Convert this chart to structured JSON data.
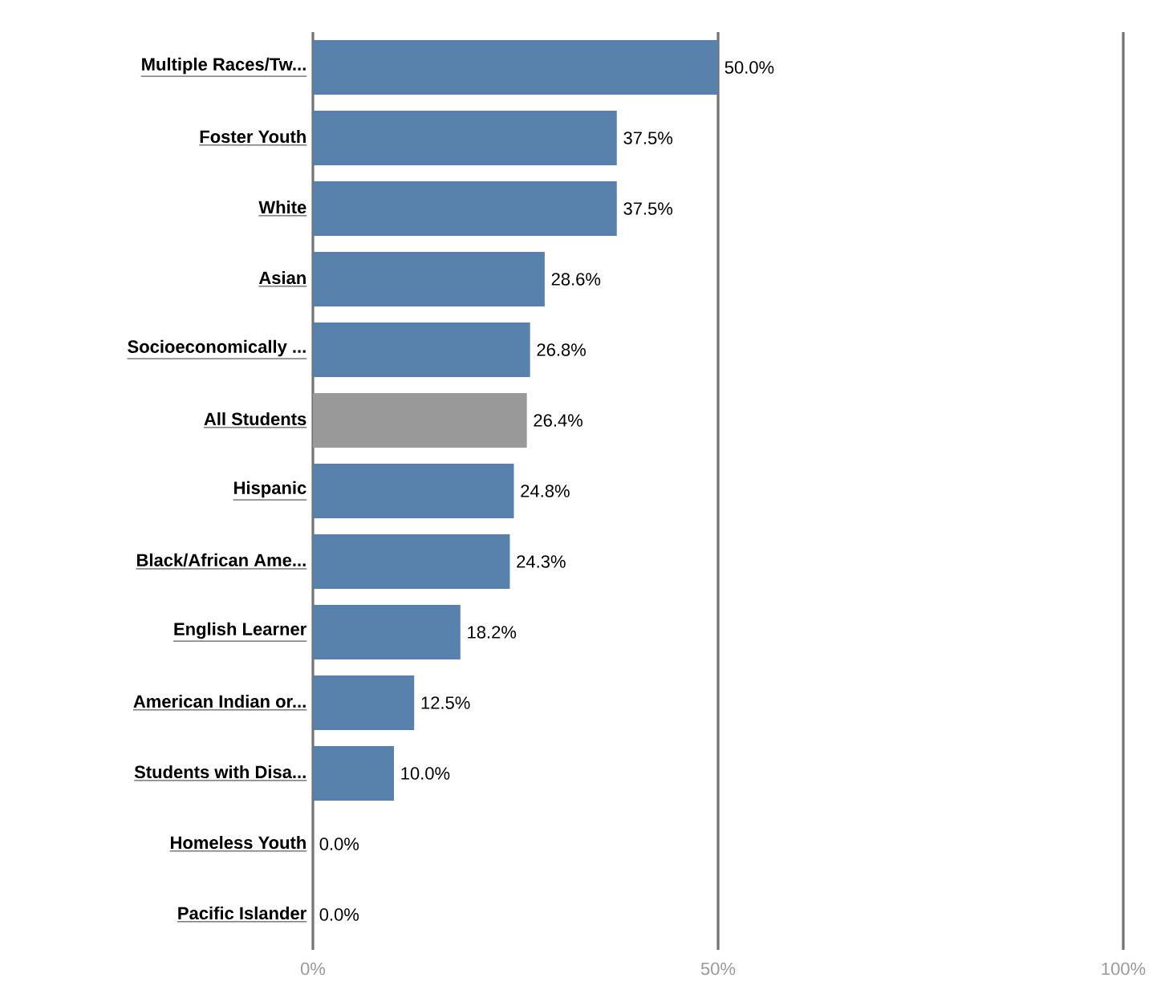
{
  "chart_data": {
    "type": "bar",
    "orientation": "horizontal",
    "categories": [
      "Multiple Races/Tw...",
      "Foster Youth",
      "White",
      "Asian",
      "Socioeconomically ...",
      "All Students",
      "Hispanic",
      "Black/African Ame...",
      "English Learner",
      "American Indian or...",
      "Students with Disa...",
      "Homeless Youth",
      "Pacific Islander"
    ],
    "values": [
      50,
      37.5,
      37.5,
      28.6,
      26.8,
      26.4,
      24.8,
      24.3,
      18.2,
      12.5,
      10,
      0,
      0
    ],
    "colors": [
      "#5882ab",
      "#5882ab",
      "#5882ab",
      "#5882ab",
      "#5882ab",
      "#999999",
      "#5882ab",
      "#5882ab",
      "#5882ab",
      "#5882ab",
      "#5882ab",
      "#5882ab",
      "#5882ab"
    ],
    "value_labels": [
      "50.0%",
      "37.5%",
      "37.5%",
      "28.6%",
      "26.8%",
      "26.4%",
      "24.8%",
      "24.3%",
      "18.2%",
      "12.5%",
      "10.0%",
      "0.0%",
      "0.0%"
    ],
    "xlim": [
      0,
      100
    ],
    "xticks": [
      {
        "value": 0,
        "label": "0%"
      },
      {
        "value": 50,
        "label": "50%"
      },
      {
        "value": 100,
        "label": "100%"
      }
    ],
    "grid": "x"
  }
}
